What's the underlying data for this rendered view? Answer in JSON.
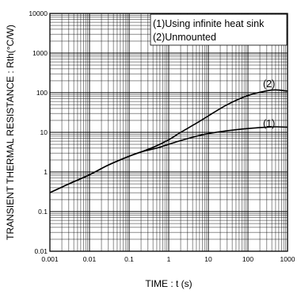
{
  "chart_data": {
    "type": "line",
    "xlabel": "TIME : t (s)",
    "ylabel": "TRANSIENT THERMAL RESISTANCE : Rth(°C/W)",
    "xscale": "log",
    "yscale": "log",
    "xlim": [
      0.001,
      1000
    ],
    "ylim": [
      0.01,
      10000
    ],
    "x_ticks": [
      "0.001",
      "0.01",
      "0.1",
      "1",
      "10",
      "100",
      "1000"
    ],
    "y_ticks": [
      "0.01",
      "0.1",
      "1",
      "10",
      "100",
      "1000",
      "10000"
    ],
    "grid": true,
    "legend": {
      "placement": "top-right",
      "entries": [
        "(1)Using infinite heat sink",
        "(2)Unmounted"
      ]
    },
    "series": [
      {
        "name": "(1)",
        "x": [
          0.001,
          0.003,
          0.01,
          0.03,
          0.1,
          0.2,
          0.5,
          1,
          2,
          5,
          10,
          30,
          100,
          300,
          500,
          1000
        ],
        "values": [
          0.3,
          0.5,
          0.85,
          1.5,
          2.5,
          3.2,
          4.0,
          5.0,
          6.2,
          8.0,
          9.3,
          11.0,
          12.5,
          13.5,
          13.8,
          13.5
        ]
      },
      {
        "name": "(2)",
        "x": [
          0.001,
          0.003,
          0.01,
          0.03,
          0.1,
          0.2,
          0.5,
          1,
          2,
          5,
          10,
          30,
          100,
          300,
          500,
          1000
        ],
        "values": [
          0.3,
          0.5,
          0.85,
          1.5,
          2.5,
          3.2,
          4.6,
          6.5,
          10,
          17,
          26,
          50,
          85,
          112,
          118,
          110
        ]
      }
    ]
  }
}
